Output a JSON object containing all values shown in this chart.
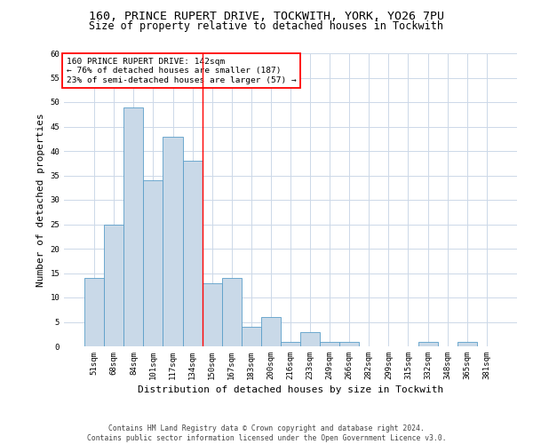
{
  "title_line1": "160, PRINCE RUPERT DRIVE, TOCKWITH, YORK, YO26 7PU",
  "title_line2": "Size of property relative to detached houses in Tockwith",
  "xlabel": "Distribution of detached houses by size in Tockwith",
  "ylabel": "Number of detached properties",
  "categories": [
    "51sqm",
    "68sqm",
    "84sqm",
    "101sqm",
    "117sqm",
    "134sqm",
    "150sqm",
    "167sqm",
    "183sqm",
    "200sqm",
    "216sqm",
    "233sqm",
    "249sqm",
    "266sqm",
    "282sqm",
    "299sqm",
    "315sqm",
    "332sqm",
    "348sqm",
    "365sqm",
    "381sqm"
  ],
  "values": [
    14,
    25,
    49,
    34,
    43,
    38,
    13,
    14,
    4,
    6,
    1,
    3,
    1,
    1,
    0,
    0,
    0,
    1,
    0,
    1,
    0
  ],
  "bar_color": "#c9d9e8",
  "bar_edge_color": "#5a9ec8",
  "reference_line_x": 5.5,
  "annotation_text_line1": "160 PRINCE RUPERT DRIVE: 142sqm",
  "annotation_text_line2": "← 76% of detached houses are smaller (187)",
  "annotation_text_line3": "23% of semi-detached houses are larger (57) →",
  "annotation_box_color": "red",
  "ylim": [
    0,
    60
  ],
  "yticks": [
    0,
    5,
    10,
    15,
    20,
    25,
    30,
    35,
    40,
    45,
    50,
    55,
    60
  ],
  "grid_color": "#ccd8e8",
  "background_color": "#ffffff",
  "footer_line1": "Contains HM Land Registry data © Crown copyright and database right 2024.",
  "footer_line2": "Contains public sector information licensed under the Open Government Licence v3.0.",
  "title_fontsize": 9.5,
  "subtitle_fontsize": 8.5,
  "tick_fontsize": 6.5,
  "xlabel_fontsize": 8,
  "ylabel_fontsize": 8,
  "annotation_fontsize": 6.8,
  "footer_fontsize": 5.8
}
